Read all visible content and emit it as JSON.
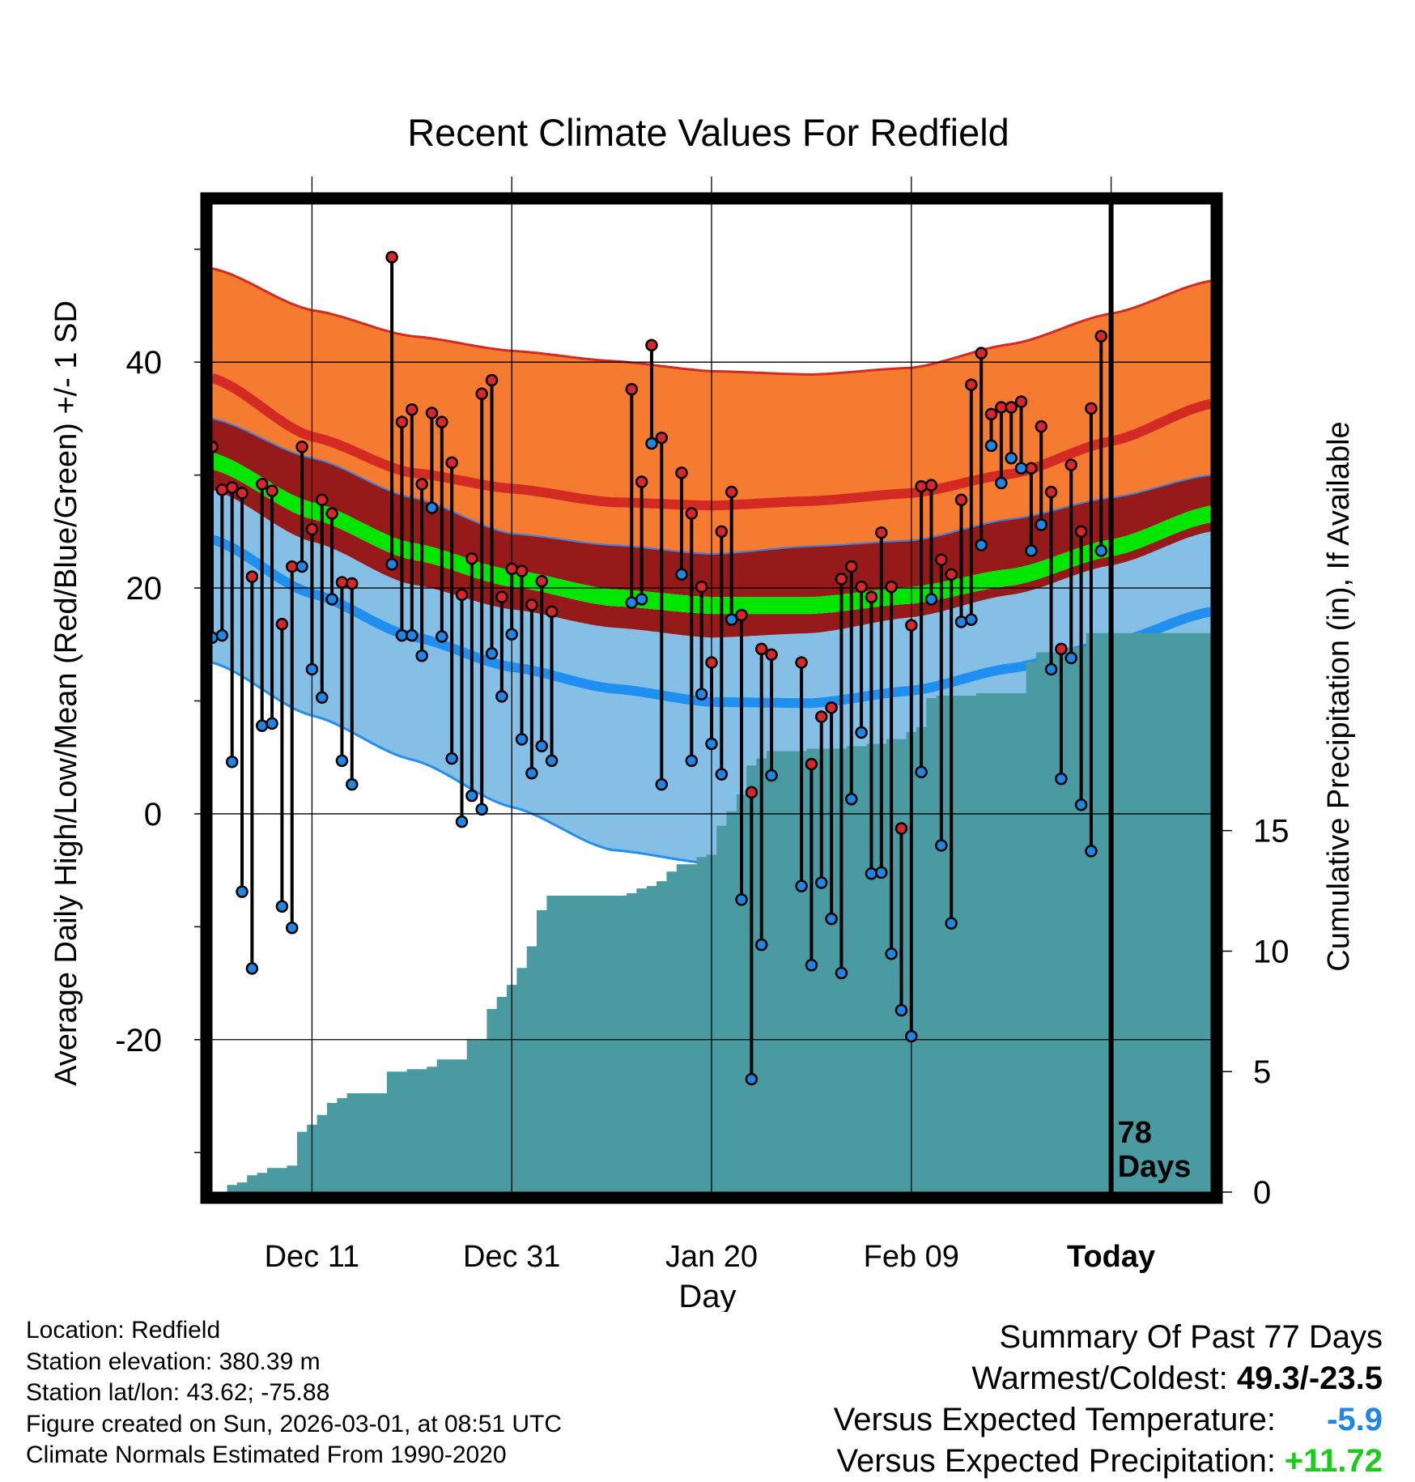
{
  "colors": {
    "high_band": "#f47b2f",
    "high_line": "#d42a24",
    "mean_band": "#961a1a",
    "mean_line": "#00e600",
    "low_band": "#85bfe6",
    "low_line": "#1f8ff0",
    "high_marker": "#d8262a",
    "low_marker": "#1f86e6",
    "precip_fill": "#4a9aa2",
    "temp_diff": "#1f86e6",
    "precip_diff": "#19cc19"
  },
  "chart_data": {
    "type": "line",
    "title": "Recent Climate Values For Redfield",
    "xlabel": "Day",
    "ylabel": "Average Daily High/Low/Mean (Red/Blue/Green) +/- 1 SD",
    "ylabel_right": "Cumulative Precipitation (in), If Available",
    "xlim": [
      1,
      101
    ],
    "ylim": [
      -33.5,
      54
    ],
    "ylim_right": [
      0,
      41
    ],
    "x_ticks": [
      {
        "day": 11,
        "label": "Dec 11"
      },
      {
        "day": 31,
        "label": "Dec 31"
      },
      {
        "day": 51,
        "label": "Jan 20"
      },
      {
        "day": 71,
        "label": "Feb 09"
      },
      {
        "day": 91,
        "label": "Today"
      }
    ],
    "y_ticks": [
      -20,
      0,
      20,
      40
    ],
    "y_ticks_right": [
      0,
      5,
      10,
      15
    ],
    "today_day": 91,
    "days_annotation": [
      "78",
      "Days"
    ],
    "normals": {
      "days": [
        1,
        11,
        21,
        31,
        41,
        51,
        61,
        71,
        81,
        91,
        101
      ],
      "high_upper": [
        48.3,
        44.6,
        42.3,
        41.0,
        40.1,
        39.2,
        38.9,
        39.5,
        41.6,
        44.3,
        47.2
      ],
      "high_mean": [
        38.6,
        33.4,
        30.2,
        28.8,
        27.6,
        27.3,
        27.7,
        28.4,
        30.1,
        33.0,
        36.3
      ],
      "high_lower": [
        35.0,
        31.5,
        28.0,
        24.8,
        23.8,
        23.0,
        23.7,
        24.2,
        26.1,
        28.0,
        30.0
      ],
      "mean_upper": [
        32.0,
        27.6,
        24.0,
        21.6,
        19.9,
        19.2,
        19.2,
        20.1,
        21.7,
        24.3,
        27.3
      ],
      "mean_lower": [
        30.5,
        26.1,
        22.5,
        20.1,
        18.4,
        17.7,
        17.7,
        18.6,
        20.2,
        22.8,
        25.8
      ],
      "low_upper": [
        28.7,
        24.1,
        20.3,
        18.1,
        16.5,
        15.6,
        16.0,
        17.4,
        19.4,
        22.0,
        25.0
      ],
      "low_mean": [
        24.3,
        19.5,
        15.7,
        13.0,
        11.1,
        9.9,
        9.8,
        10.9,
        12.9,
        15.1,
        17.9
      ],
      "low_lower": [
        13.4,
        8.7,
        4.8,
        0.6,
        -3.2,
        -4.4,
        -4.1,
        -2.2,
        -0.5,
        2.0,
        5.2
      ]
    },
    "series": [
      {
        "name": "Daily High",
        "values": [
          32.5,
          28.7,
          28.9,
          28.4,
          21.0,
          29.2,
          28.6,
          16.8,
          21.9,
          32.5,
          25.2,
          27.8,
          26.6,
          20.5,
          20.4,
          null,
          null,
          null,
          49.3,
          34.7,
          35.8,
          29.2,
          35.5,
          34.7,
          31.1,
          19.4,
          22.6,
          37.2,
          38.4,
          19.2,
          21.7,
          21.5,
          18.5,
          20.6,
          17.9,
          null,
          null,
          null,
          null,
          null,
          null,
          null,
          37.6,
          29.4,
          41.5,
          33.3,
          null,
          30.2,
          26.6,
          20.1,
          13.4,
          25.0,
          28.5,
          17.6,
          1.9,
          14.6,
          14.1,
          null,
          null,
          13.4,
          4.4,
          8.6,
          9.4,
          20.8,
          21.9,
          20.1,
          19.2,
          24.9,
          20.1,
          -1.3,
          16.7,
          29.0,
          29.1,
          22.5,
          21.2,
          27.8,
          38.0,
          40.8,
          35.4,
          36.0,
          36.0,
          36.5,
          30.6,
          34.3,
          28.5,
          14.6,
          30.9,
          25.0,
          35.9,
          42.3
        ]
      },
      {
        "name": "Daily Low",
        "values": [
          15.6,
          15.8,
          4.6,
          -6.9,
          -13.7,
          7.8,
          8.0,
          -8.2,
          -10.1,
          21.9,
          12.8,
          10.3,
          19.0,
          4.7,
          2.6,
          null,
          null,
          null,
          22.1,
          15.8,
          15.8,
          14.0,
          27.1,
          15.7,
          4.9,
          -0.7,
          1.6,
          0.4,
          14.2,
          10.4,
          15.9,
          6.6,
          3.6,
          6.0,
          4.7,
          null,
          null,
          null,
          null,
          null,
          null,
          null,
          18.7,
          19.0,
          32.8,
          2.6,
          null,
          21.2,
          4.7,
          10.6,
          6.2,
          3.5,
          17.2,
          -7.6,
          -23.5,
          -11.6,
          3.4,
          null,
          null,
          -6.4,
          -13.4,
          -6.1,
          -9.3,
          -14.1,
          1.3,
          7.2,
          -5.3,
          -5.2,
          -12.4,
          -17.4,
          -19.7,
          3.7,
          19.0,
          -2.8,
          -9.7,
          17.0,
          17.2,
          23.8,
          32.6,
          29.3,
          31.5,
          30.6,
          23.3,
          25.6,
          12.8,
          3.1,
          13.8,
          0.8,
          -3.3,
          23.3
        ]
      },
      {
        "name": "Cumulative Precipitation",
        "values": [
          0.0,
          0.0,
          0.3,
          0.4,
          0.7,
          0.8,
          1.0,
          1.0,
          1.1,
          2.5,
          2.8,
          3.2,
          3.7,
          3.9,
          4.1,
          4.1,
          4.1,
          4.1,
          5.0,
          5.0,
          5.1,
          5.1,
          5.2,
          5.5,
          5.5,
          5.5,
          6.3,
          6.3,
          7.6,
          8.1,
          8.6,
          9.3,
          10.2,
          11.7,
          12.3,
          12.3,
          12.3,
          12.3,
          12.3,
          12.3,
          12.3,
          12.3,
          12.4,
          12.6,
          12.7,
          12.9,
          13.3,
          13.6,
          13.6,
          13.9,
          14.0,
          15.2,
          15.8,
          16.5,
          17.7,
          18.0,
          18.3,
          18.3,
          18.3,
          18.3,
          18.4,
          18.4,
          18.4,
          18.4,
          18.5,
          18.5,
          18.6,
          18.6,
          18.8,
          18.8,
          19.1,
          19.3,
          20.5,
          20.6,
          20.6,
          20.6,
          20.6,
          20.7,
          20.7,
          20.7,
          20.7,
          20.7,
          22.0,
          22.4,
          22.4,
          22.4,
          22.6,
          22.6,
          23.2,
          23.2,
          23.2,
          23.2,
          23.2,
          23.2,
          23.2,
          23.2,
          23.2,
          23.2,
          23.2,
          23.2,
          23.2
        ]
      }
    ]
  },
  "info": {
    "location": "Location: Redfield",
    "elevation": "Station elevation: 380.39 m",
    "latlon": "Station lat/lon: 43.62; -75.88",
    "created": "Figure created on Sun, 2026-03-01, at 08:51 UTC",
    "normals": "Climate Normals Estimated From 1990-2020"
  },
  "summary": {
    "title": "Summary Of Past 77 Days",
    "warm_cold_label": "Warmest/Coldest: ",
    "warm_cold_value": "49.3/-23.5",
    "temp_label": "Versus Expected Temperature:",
    "temp_value": "-5.9",
    "precip_label": "Versus Expected Precipitation:",
    "precip_value": "+11.72"
  }
}
